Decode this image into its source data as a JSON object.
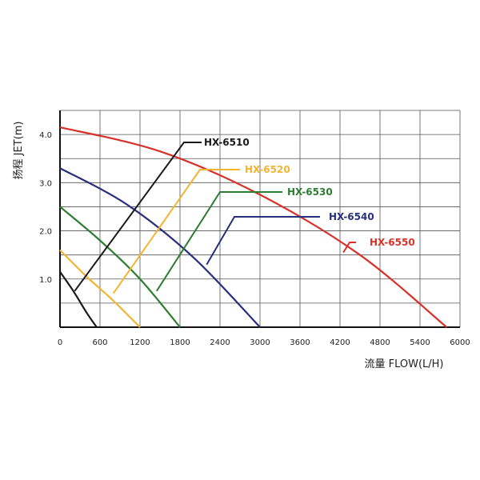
{
  "chart_data": {
    "type": "line",
    "xlabel": "流量 FLOW(L/H)",
    "ylabel": "扬程 JET(m)",
    "xlim": [
      0,
      6000
    ],
    "ylim": [
      0,
      4.5
    ],
    "grid": true,
    "x_ticks": [
      "0",
      "600",
      "1200",
      "1800",
      "2400",
      "3000",
      "3600",
      "4200",
      "4800",
      "5400",
      "6000"
    ],
    "y_ticks": [
      "1.0",
      "2.0",
      "3.0",
      "4.0"
    ],
    "series": [
      {
        "name": "HX-6510",
        "color": "#1a1a1a",
        "x": [
          0,
          200,
          400,
          550
        ],
        "y": [
          1.15,
          0.75,
          0.3,
          0
        ]
      },
      {
        "name": "HX-6520",
        "color": "#f2b431",
        "x": [
          0,
          400,
          800,
          1200
        ],
        "y": [
          1.6,
          1.05,
          0.55,
          0
        ]
      },
      {
        "name": "HX-6530",
        "color": "#2e7d32",
        "x": [
          0,
          600,
          1200,
          1800
        ],
        "y": [
          2.5,
          1.8,
          1.0,
          0
        ]
      },
      {
        "name": "HX-6540",
        "color": "#28307e",
        "x": [
          0,
          1000,
          2000,
          3000
        ],
        "y": [
          3.3,
          2.55,
          1.45,
          0
        ]
      },
      {
        "name": "HX-6550",
        "color": "#d8312a",
        "x": [
          0,
          1500,
          3000,
          4500,
          5800
        ],
        "y": [
          4.15,
          3.65,
          2.75,
          1.5,
          0
        ]
      }
    ],
    "annotations": [
      {
        "label": "HX-6510",
        "series": 0,
        "anchor_x": 220,
        "anchor_y": 0.75
      },
      {
        "label": "HX-6520",
        "series": 1,
        "anchor_x": 800,
        "anchor_y": 0.7
      },
      {
        "label": "HX-6530",
        "series": 2,
        "anchor_x": 1450,
        "anchor_y": 0.75
      },
      {
        "label": "HX-6540",
        "series": 3,
        "anchor_x": 2200,
        "anchor_y": 1.3
      },
      {
        "label": "HX-6550",
        "series": 4,
        "anchor_x": 4250,
        "anchor_y": 1.55
      }
    ]
  }
}
